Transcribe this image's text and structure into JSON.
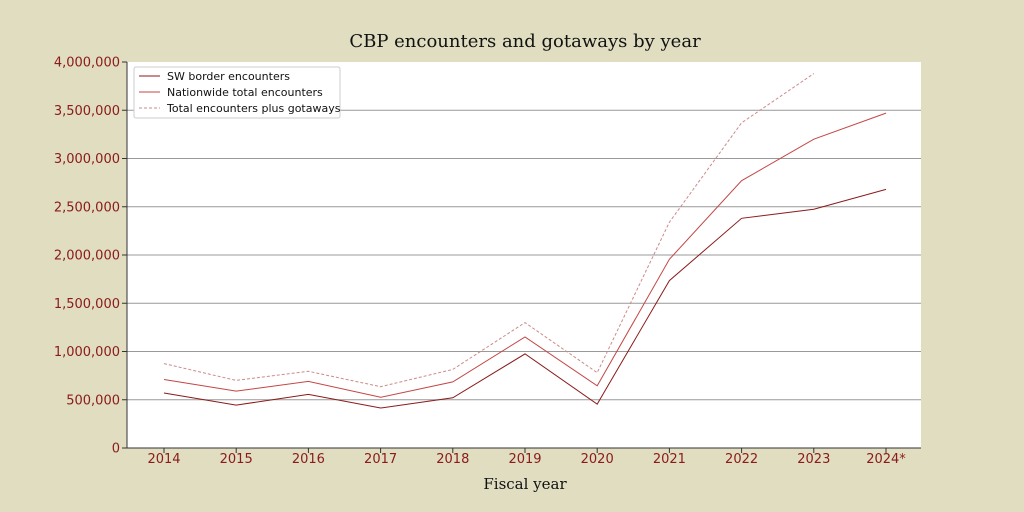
{
  "chart_data": {
    "type": "line",
    "title": "CBP encounters and gotaways by year",
    "xlabel": "Fiscal year",
    "ylabel": "",
    "categories": [
      "2014",
      "2015",
      "2016",
      "2017",
      "2018",
      "2019",
      "2020",
      "2021",
      "2022",
      "2023",
      "2024*"
    ],
    "ylim": [
      0,
      4000000
    ],
    "yticks": [
      0,
      500000,
      1000000,
      1500000,
      2000000,
      2500000,
      3000000,
      3500000,
      4000000
    ],
    "ytick_labels": [
      "0",
      "500,000",
      "1,000,000",
      "1,500,000",
      "2,000,000",
      "2,500,000",
      "3,000,000",
      "3,500,000",
      "4,000,000"
    ],
    "grid": true,
    "legend_position": "top-left",
    "series": [
      {
        "name": "SW border encounters",
        "color": "#8b1a1a",
        "dash": "solid",
        "values": [
          570000,
          445000,
          555000,
          415000,
          520000,
          975000,
          455000,
          1735000,
          2380000,
          2475000,
          2680000
        ]
      },
      {
        "name": "Nationwide total encounters",
        "color": "#c44545",
        "dash": "solid",
        "values": [
          710000,
          590000,
          690000,
          525000,
          685000,
          1150000,
          645000,
          1955000,
          2770000,
          3200000,
          3470000
        ]
      },
      {
        "name": "Total encounters plus gotaways",
        "color": "#cc8a8a",
        "dash": "dashed",
        "values": [
          875000,
          700000,
          795000,
          635000,
          815000,
          1300000,
          780000,
          2340000,
          3370000,
          3880000,
          null
        ]
      }
    ]
  }
}
